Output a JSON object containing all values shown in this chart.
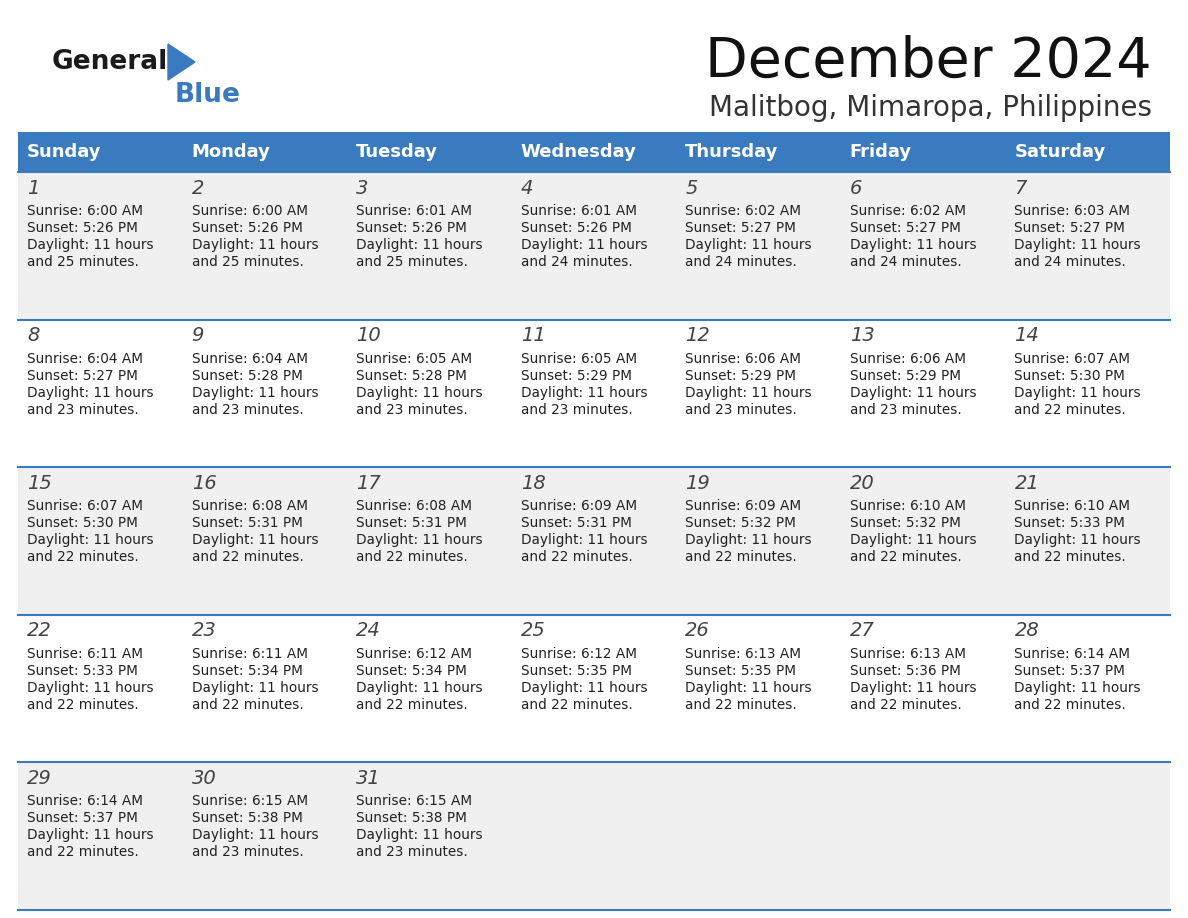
{
  "title": "December 2024",
  "subtitle": "Malitbog, Mimaropa, Philippines",
  "days_of_week": [
    "Sunday",
    "Monday",
    "Tuesday",
    "Wednesday",
    "Thursday",
    "Friday",
    "Saturday"
  ],
  "header_bg": "#3a7abf",
  "header_text": "#ffffff",
  "row_bg_odd": "#f0f0f0",
  "row_bg_even": "#ffffff",
  "cell_text_color": "#222222",
  "border_color": "#3a7abf",
  "calendar_data": [
    [
      {
        "day": 1,
        "sunrise": "6:00 AM",
        "sunset": "5:26 PM",
        "daylight_hrs": 11,
        "daylight_mins": 25
      },
      {
        "day": 2,
        "sunrise": "6:00 AM",
        "sunset": "5:26 PM",
        "daylight_hrs": 11,
        "daylight_mins": 25
      },
      {
        "day": 3,
        "sunrise": "6:01 AM",
        "sunset": "5:26 PM",
        "daylight_hrs": 11,
        "daylight_mins": 25
      },
      {
        "day": 4,
        "sunrise": "6:01 AM",
        "sunset": "5:26 PM",
        "daylight_hrs": 11,
        "daylight_mins": 24
      },
      {
        "day": 5,
        "sunrise": "6:02 AM",
        "sunset": "5:27 PM",
        "daylight_hrs": 11,
        "daylight_mins": 24
      },
      {
        "day": 6,
        "sunrise": "6:02 AM",
        "sunset": "5:27 PM",
        "daylight_hrs": 11,
        "daylight_mins": 24
      },
      {
        "day": 7,
        "sunrise": "6:03 AM",
        "sunset": "5:27 PM",
        "daylight_hrs": 11,
        "daylight_mins": 24
      }
    ],
    [
      {
        "day": 8,
        "sunrise": "6:04 AM",
        "sunset": "5:27 PM",
        "daylight_hrs": 11,
        "daylight_mins": 23
      },
      {
        "day": 9,
        "sunrise": "6:04 AM",
        "sunset": "5:28 PM",
        "daylight_hrs": 11,
        "daylight_mins": 23
      },
      {
        "day": 10,
        "sunrise": "6:05 AM",
        "sunset": "5:28 PM",
        "daylight_hrs": 11,
        "daylight_mins": 23
      },
      {
        "day": 11,
        "sunrise": "6:05 AM",
        "sunset": "5:29 PM",
        "daylight_hrs": 11,
        "daylight_mins": 23
      },
      {
        "day": 12,
        "sunrise": "6:06 AM",
        "sunset": "5:29 PM",
        "daylight_hrs": 11,
        "daylight_mins": 23
      },
      {
        "day": 13,
        "sunrise": "6:06 AM",
        "sunset": "5:29 PM",
        "daylight_hrs": 11,
        "daylight_mins": 23
      },
      {
        "day": 14,
        "sunrise": "6:07 AM",
        "sunset": "5:30 PM",
        "daylight_hrs": 11,
        "daylight_mins": 22
      }
    ],
    [
      {
        "day": 15,
        "sunrise": "6:07 AM",
        "sunset": "5:30 PM",
        "daylight_hrs": 11,
        "daylight_mins": 22
      },
      {
        "day": 16,
        "sunrise": "6:08 AM",
        "sunset": "5:31 PM",
        "daylight_hrs": 11,
        "daylight_mins": 22
      },
      {
        "day": 17,
        "sunrise": "6:08 AM",
        "sunset": "5:31 PM",
        "daylight_hrs": 11,
        "daylight_mins": 22
      },
      {
        "day": 18,
        "sunrise": "6:09 AM",
        "sunset": "5:31 PM",
        "daylight_hrs": 11,
        "daylight_mins": 22
      },
      {
        "day": 19,
        "sunrise": "6:09 AM",
        "sunset": "5:32 PM",
        "daylight_hrs": 11,
        "daylight_mins": 22
      },
      {
        "day": 20,
        "sunrise": "6:10 AM",
        "sunset": "5:32 PM",
        "daylight_hrs": 11,
        "daylight_mins": 22
      },
      {
        "day": 21,
        "sunrise": "6:10 AM",
        "sunset": "5:33 PM",
        "daylight_hrs": 11,
        "daylight_mins": 22
      }
    ],
    [
      {
        "day": 22,
        "sunrise": "6:11 AM",
        "sunset": "5:33 PM",
        "daylight_hrs": 11,
        "daylight_mins": 22
      },
      {
        "day": 23,
        "sunrise": "6:11 AM",
        "sunset": "5:34 PM",
        "daylight_hrs": 11,
        "daylight_mins": 22
      },
      {
        "day": 24,
        "sunrise": "6:12 AM",
        "sunset": "5:34 PM",
        "daylight_hrs": 11,
        "daylight_mins": 22
      },
      {
        "day": 25,
        "sunrise": "6:12 AM",
        "sunset": "5:35 PM",
        "daylight_hrs": 11,
        "daylight_mins": 22
      },
      {
        "day": 26,
        "sunrise": "6:13 AM",
        "sunset": "5:35 PM",
        "daylight_hrs": 11,
        "daylight_mins": 22
      },
      {
        "day": 27,
        "sunrise": "6:13 AM",
        "sunset": "5:36 PM",
        "daylight_hrs": 11,
        "daylight_mins": 22
      },
      {
        "day": 28,
        "sunrise": "6:14 AM",
        "sunset": "5:37 PM",
        "daylight_hrs": 11,
        "daylight_mins": 22
      }
    ],
    [
      {
        "day": 29,
        "sunrise": "6:14 AM",
        "sunset": "5:37 PM",
        "daylight_hrs": 11,
        "daylight_mins": 22
      },
      {
        "day": 30,
        "sunrise": "6:15 AM",
        "sunset": "5:38 PM",
        "daylight_hrs": 11,
        "daylight_mins": 23
      },
      {
        "day": 31,
        "sunrise": "6:15 AM",
        "sunset": "5:38 PM",
        "daylight_hrs": 11,
        "daylight_mins": 23
      },
      null,
      null,
      null,
      null
    ]
  ],
  "logo_general_color": "#1a1a1a",
  "logo_blue_color": "#3a7abf",
  "figsize": [
    11.88,
    9.18
  ],
  "dpi": 100
}
